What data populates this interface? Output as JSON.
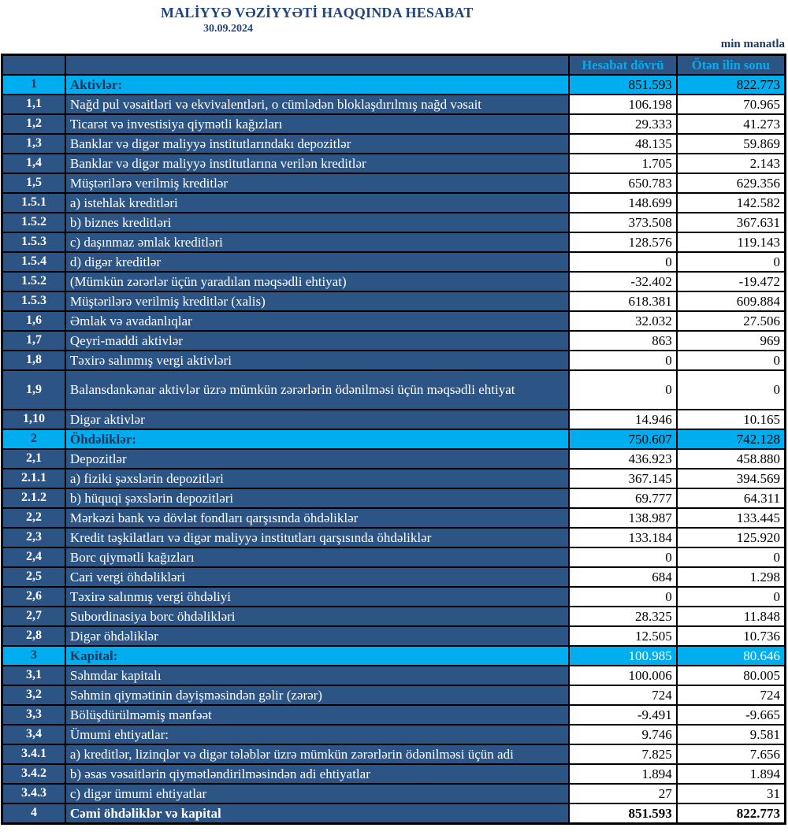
{
  "header": {
    "title": "MALİYYƏ VƏZİYYƏTİ HAQQINDA HESABAT",
    "date": "30.09.2024",
    "unit_note": "min manatla"
  },
  "table": {
    "col_headers": {
      "period": "Hesabat dövrü",
      "prev_year": "Ötən ilin sonu"
    },
    "rows": [
      {
        "num": "1",
        "label": "Aktivlər:",
        "v1": "851.593",
        "v2": "822.773",
        "type": "section"
      },
      {
        "num": "1,1",
        "label": "Nağd pul vəsaitləri və  ekvivalentləri, o cümlədən bloklaşdırılmış nağd vəsait",
        "v1": "106.198",
        "v2": "70.965",
        "type": "normal"
      },
      {
        "num": "1,2",
        "label": "Ticarət və investisiya qiymətli kağızları",
        "v1": "29.333",
        "v2": "41.273",
        "type": "normal"
      },
      {
        "num": "1,3",
        "label": "Banklar və digər maliyyə institutlarındakı depozitlər",
        "v1": "48.135",
        "v2": "59.869",
        "type": "normal"
      },
      {
        "num": "1,4",
        "label": "Banklar və digər maliyyə institutlarına verilən kreditlər",
        "v1": "1.705",
        "v2": "2.143",
        "type": "normal"
      },
      {
        "num": "1,5",
        "label": "Müştərilərə verilmiş kreditlər",
        "v1": "650.783",
        "v2": "629.356",
        "type": "normal"
      },
      {
        "num": "1.5.1",
        "label": "a) istehlak kreditləri",
        "v1": "148.699",
        "v2": "142.582",
        "type": "normal"
      },
      {
        "num": "1.5.2",
        "label": "b) biznes kreditləri",
        "v1": "373.508",
        "v2": "367.631",
        "type": "normal"
      },
      {
        "num": "1.5.3",
        "label": "c) daşınmaz əmlak kreditləri",
        "v1": "128.576",
        "v2": "119.143",
        "type": "normal"
      },
      {
        "num": "1.5.4",
        "label": "d) digər kreditlər",
        "v1": "0",
        "v2": "0",
        "type": "normal"
      },
      {
        "num": "1.5.2",
        "label": "(Mümkün zərərlər üçün yaradılan məqsədli ehtiyat)",
        "v1": "-32.402",
        "v2": "-19.472",
        "type": "normal"
      },
      {
        "num": "1.5.3",
        "label": "Müştərilərə verilmiş kreditlər (xalis)",
        "v1": "618.381",
        "v2": "609.884",
        "type": "normal"
      },
      {
        "num": "1,6",
        "label": "Əmlak və avadanlıqlar",
        "v1": "32.032",
        "v2": "27.506",
        "type": "normal"
      },
      {
        "num": "1,7",
        "label": "Qeyri-maddi aktivlər",
        "v1": "863",
        "v2": "969",
        "type": "normal"
      },
      {
        "num": "1,8",
        "label": "Təxirə salınmış vergi aktivləri",
        "v1": "0",
        "v2": "0",
        "type": "normal"
      },
      {
        "num": "1,9",
        "label": "Balansdankənar aktivlər üzrə mümkün zərərlərin ödənilməsi üçün məqsədli ehtiyat",
        "v1": "0",
        "v2": "0",
        "type": "normal",
        "tall": true
      },
      {
        "num": "1,10",
        "label": "Digər aktivlər",
        "v1": "14.946",
        "v2": "10.165",
        "type": "normal"
      },
      {
        "num": "2",
        "label": "Öhdəliklər:",
        "v1": "750.607",
        "v2": "742.128",
        "type": "section"
      },
      {
        "num": "2,1",
        "label": "Depozitlər",
        "v1": "436.923",
        "v2": "458.880",
        "type": "normal"
      },
      {
        "num": "2.1.1",
        "label": "a) fiziki şəxslərin depozitləri",
        "v1": "367.145",
        "v2": "394.569",
        "type": "normal"
      },
      {
        "num": "2.1.2",
        "label": "b) hüquqi şəxslərin depozitləri",
        "v1": "69.777",
        "v2": "64.311",
        "type": "normal"
      },
      {
        "num": "2,2",
        "label": "Mərkəzi bank və dövlət fondları qarşısında öhdəliklər",
        "v1": "138.987",
        "v2": "133.445",
        "type": "normal"
      },
      {
        "num": "2,3",
        "label": "Kredit təşkilatları və digər maliyyə institutları qarşısında öhdəliklər",
        "v1": "133.184",
        "v2": "125.920",
        "type": "normal"
      },
      {
        "num": "2,4",
        "label": "Borc qiymətli kağızları",
        "v1": "0",
        "v2": "0",
        "type": "normal"
      },
      {
        "num": "2,5",
        "label": "Cari vergi öhdəlikləri",
        "v1": "684",
        "v2": "1.298",
        "type": "normal"
      },
      {
        "num": "2,6",
        "label": "Təxirə salınmış vergi öhdəliyi",
        "v1": "0",
        "v2": "0",
        "type": "normal"
      },
      {
        "num": "2,7",
        "label": "Subordinasiya borc öhdəlikləri",
        "v1": "28.325",
        "v2": "11.848",
        "type": "normal"
      },
      {
        "num": "2,8",
        "label": "Digər öhdəliklər",
        "v1": "12.505",
        "v2": "10.736",
        "type": "normal"
      },
      {
        "num": "3",
        "label": "Kapital:",
        "v1": "100.985",
        "v2": "80.646",
        "type": "section",
        "values_white": true
      },
      {
        "num": "3,1",
        "label": "Səhmdar kapitalı",
        "v1": "100.006",
        "v2": "80.005",
        "type": "normal"
      },
      {
        "num": "3,2",
        "label": "Səhmin qiymətinin dəyişməsindən gəlir (zərər)",
        "v1": "724",
        "v2": "724",
        "type": "normal"
      },
      {
        "num": "3,3",
        "label": "Bölüşdürülməmiş mənfəət",
        "v1": "-9.491",
        "v2": "-9.665",
        "type": "normal"
      },
      {
        "num": "3,4",
        "label": "Ümumi ehtiyatlar:",
        "v1": "9.746",
        "v2": "9.581",
        "type": "normal"
      },
      {
        "num": "3.4.1",
        "label": "a) kreditlər, lizinqlər və digər tələblər üzrə mümkün zərərlərin ödənilməsi üçün adi",
        "v1": "7.825",
        "v2": "7.656",
        "type": "normal"
      },
      {
        "num": "3.4.2",
        "label": "b) əsas vəsaitlərin qiymətləndirilməsindən adi ehtiyatlar",
        "v1": "1.894",
        "v2": "1.894",
        "type": "normal"
      },
      {
        "num": "3.4.3",
        "label": "c) digər ümumi ehtiyatlar",
        "v1": "27",
        "v2": "31",
        "type": "normal"
      },
      {
        "num": "4",
        "label": "Cəmi öhdəliklər və kapital",
        "v1": "851.593",
        "v2": "822.773",
        "type": "total"
      }
    ]
  },
  "colors": {
    "navy_cell": "#2C5586",
    "cyan_section": "#00AEEF",
    "section_text": "#16365C",
    "title_blue": "#21457E",
    "border": "#000000"
  }
}
